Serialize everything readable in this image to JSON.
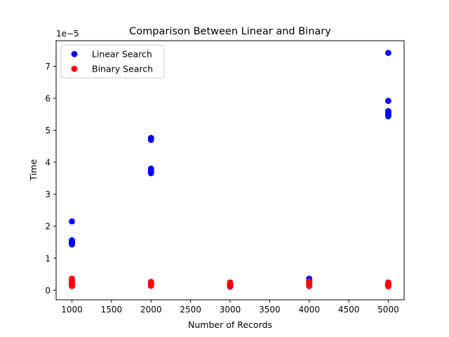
{
  "chart_data": {
    "type": "scatter",
    "title": "Comparison Between Linear and Binary",
    "xlabel": "Number of Records",
    "ylabel": "Time",
    "y_offset_label": "1e−5",
    "xlim": [
      800,
      5200
    ],
    "ylim": [
      -0.3,
      7.8
    ],
    "x_ticks": [
      1000,
      1500,
      2000,
      2500,
      3000,
      3500,
      4000,
      4500,
      5000
    ],
    "y_ticks": [
      0,
      1,
      2,
      3,
      4,
      5,
      6,
      7
    ],
    "grid": false,
    "legend_position": "top-left",
    "series": [
      {
        "name": "Linear Search",
        "color": "#0000ff",
        "points": [
          [
            1000,
            2.15
          ],
          [
            1000,
            1.56
          ],
          [
            1000,
            1.52
          ],
          [
            1000,
            1.49
          ],
          [
            1000,
            1.47
          ],
          [
            1000,
            1.45
          ],
          [
            1000,
            1.43
          ],
          [
            2000,
            4.76
          ],
          [
            2000,
            4.7
          ],
          [
            2000,
            3.8
          ],
          [
            2000,
            3.75
          ],
          [
            2000,
            3.71
          ],
          [
            2000,
            3.68
          ],
          [
            2000,
            3.66
          ],
          [
            3000,
            0.14
          ],
          [
            3000,
            0.12
          ],
          [
            3000,
            0.11
          ],
          [
            4000,
            0.36
          ],
          [
            4000,
            0.3
          ],
          [
            4000,
            0.25
          ],
          [
            4000,
            0.2
          ],
          [
            5000,
            7.42
          ],
          [
            5000,
            5.92
          ],
          [
            5000,
            5.6
          ],
          [
            5000,
            5.55
          ],
          [
            5000,
            5.5
          ],
          [
            5000,
            5.47
          ],
          [
            5000,
            5.44
          ]
        ]
      },
      {
        "name": "Binary Search",
        "color": "#ff0000",
        "points": [
          [
            1000,
            0.36
          ],
          [
            1000,
            0.3
          ],
          [
            1000,
            0.25
          ],
          [
            1000,
            0.2
          ],
          [
            1000,
            0.17
          ],
          [
            1000,
            0.15
          ],
          [
            1000,
            0.13
          ],
          [
            2000,
            0.26
          ],
          [
            2000,
            0.22
          ],
          [
            2000,
            0.18
          ],
          [
            2000,
            0.16
          ],
          [
            2000,
            0.14
          ],
          [
            3000,
            0.24
          ],
          [
            3000,
            0.2
          ],
          [
            3000,
            0.17
          ],
          [
            3000,
            0.14
          ],
          [
            3000,
            0.12
          ],
          [
            4000,
            0.27
          ],
          [
            4000,
            0.22
          ],
          [
            4000,
            0.18
          ],
          [
            4000,
            0.15
          ],
          [
            4000,
            0.13
          ],
          [
            5000,
            0.24
          ],
          [
            5000,
            0.2
          ],
          [
            5000,
            0.17
          ],
          [
            5000,
            0.14
          ],
          [
            5000,
            0.12
          ]
        ]
      }
    ]
  }
}
